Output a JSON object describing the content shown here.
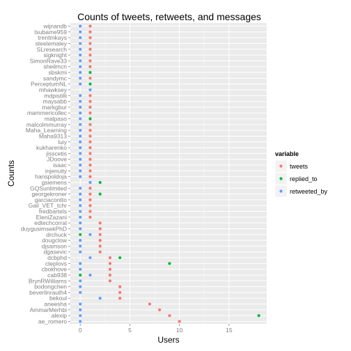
{
  "chart_data": {
    "type": "scatter",
    "title": "Counts of tweets, retweets, and messages",
    "xlabel": "Users",
    "ylabel": "Counts",
    "xlim": [
      -1,
      18.8
    ],
    "x_ticks": [
      0,
      5,
      10,
      15
    ],
    "grid": true,
    "legend": {
      "title": "variable",
      "placement": "right"
    },
    "categories": [
      "wijnandb",
      "tsubame959",
      "trentmkays",
      "steelemaley",
      "SLresearch",
      "sigknight",
      "SimonRave33",
      "sheilmcn",
      "sbskmi",
      "sandymc",
      "PerceptumNL",
      "mhawksey",
      "mdpistilli",
      "maysabb",
      "markgbur",
      "mammericollec",
      "malpaso",
      "malcolmmurray",
      "Maha_Learning",
      "Maha9313",
      "luiy",
      "kukharenko",
      "jisscetis",
      "JDoove",
      "isaac",
      "injenuity",
      "hanspoldoja",
      "gsiemens",
      "GQSunlimited",
      "georgekroner",
      "garciacontto",
      "Gail_VET_tchr",
      "fredbartels",
      "EleniZazani",
      "edtechcorral",
      "duygusimsekPhD",
      "drchuck",
      "dougclow",
      "djsamson",
      "dgasevic",
      "dcbphd",
      "cteplovs",
      "cbokhove",
      "cab938",
      "BrynRWilliams",
      "bodongchen",
      "beverlinrauth4",
      "bekoul",
      "aneesha",
      "AmmarMerhbi",
      "alexip",
      "ae_romero"
    ],
    "series": [
      {
        "name": "tweets",
        "color": "#F8766D",
        "values": [
          1,
          1,
          1,
          1,
          1,
          1,
          1,
          1,
          null,
          1,
          null,
          null,
          1,
          1,
          1,
          1,
          null,
          1,
          1,
          1,
          1,
          1,
          1,
          1,
          1,
          1,
          1,
          null,
          1,
          1,
          1,
          1,
          1,
          1,
          2,
          2,
          2,
          2,
          2,
          2,
          3,
          3,
          3,
          3,
          3,
          4,
          4,
          4,
          7,
          8,
          9,
          10
        ]
      },
      {
        "name": "replied_to",
        "color": "#00BA38",
        "values": [
          null,
          null,
          null,
          null,
          null,
          null,
          null,
          null,
          1,
          null,
          1,
          null,
          null,
          null,
          null,
          null,
          1,
          null,
          null,
          null,
          null,
          null,
          null,
          null,
          null,
          null,
          null,
          2,
          null,
          2,
          null,
          null,
          null,
          null,
          null,
          null,
          0,
          null,
          null,
          null,
          4,
          9,
          null,
          0,
          null,
          null,
          null,
          null,
          null,
          null,
          18,
          null
        ]
      },
      {
        "name": "retweeted_by",
        "color": "#619CFF",
        "values": [
          0,
          0,
          0,
          0,
          0,
          0,
          0,
          0,
          0,
          0,
          0,
          1,
          0,
          0,
          0,
          0,
          0,
          0,
          0,
          0,
          0,
          0,
          0,
          0,
          0,
          0,
          0,
          1,
          0,
          0,
          0,
          0,
          0,
          0,
          0,
          0,
          1,
          0,
          0,
          0,
          1,
          0,
          0,
          1,
          0,
          0,
          0,
          2,
          0,
          0,
          0,
          0
        ]
      }
    ]
  }
}
